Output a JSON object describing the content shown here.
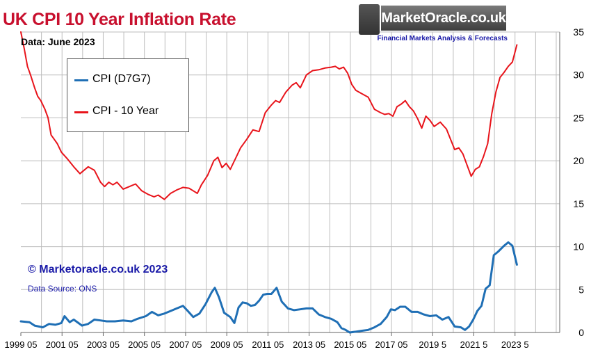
{
  "branding": {
    "site_name": "MarketOracle.co.uk",
    "tagline": "Financial Markets Analysis & Forecasts"
  },
  "footer": {
    "copyright": "© Marketoracle.co.uk 2023",
    "source": "Data Source: ONS"
  },
  "colors": {
    "cpi": "#1f6fb5",
    "cpi10": "#e8141b",
    "title": "#c8102e",
    "text_blue": "#1a1aa8",
    "grid": "#bdbdbd"
  },
  "chart_data": {
    "type": "line",
    "title": "UK CPI 10 Year Inflation Rate",
    "subtitle": "Data:  June 2023",
    "xlabel": "",
    "ylabel": "",
    "x_ticks": [
      "1999 05",
      "2001 05",
      "2003 05",
      "2005 05",
      "2007 05",
      "2009 05",
      "2011 05",
      "2013 05",
      "2015 05",
      "2017 05",
      "2019 5",
      "2021 5",
      "2023 5"
    ],
    "x_range": [
      1999.33,
      2025.5
    ],
    "ylim": [
      0,
      35
    ],
    "y_ticks": [
      0,
      5,
      10,
      15,
      20,
      25,
      30,
      35
    ],
    "y_axis_side": "right",
    "grid": true,
    "legend_position": "top-left",
    "series": [
      {
        "name": "CPI (D7G7)",
        "color": "#1f6fb5",
        "x": [
          1999.33,
          1999.75,
          2000.0,
          2000.4,
          2000.7,
          2001.0,
          2001.3,
          2001.45,
          2001.7,
          2001.9,
          2002.3,
          2002.6,
          2002.9,
          2003.2,
          2003.5,
          2003.9,
          2004.3,
          2004.7,
          2005.0,
          2005.4,
          2005.7,
          2006.0,
          2006.3,
          2006.6,
          2006.9,
          2007.2,
          2007.4,
          2007.7,
          2008.0,
          2008.3,
          2008.6,
          2008.75,
          2008.95,
          2009.2,
          2009.5,
          2009.7,
          2009.9,
          2010.1,
          2010.3,
          2010.5,
          2010.7,
          2010.9,
          2011.1,
          2011.3,
          2011.5,
          2011.75,
          2012.0,
          2012.3,
          2012.6,
          2012.9,
          2013.2,
          2013.5,
          2013.8,
          2014.1,
          2014.4,
          2014.7,
          2014.9,
          2015.1,
          2015.3,
          2015.6,
          2015.9,
          2016.2,
          2016.5,
          2016.8,
          2017.1,
          2017.3,
          2017.5,
          2017.75,
          2018.0,
          2018.3,
          2018.6,
          2018.9,
          2019.2,
          2019.5,
          2019.8,
          2020.1,
          2020.4,
          2020.7,
          2020.9,
          2021.1,
          2021.3,
          2021.5,
          2021.7,
          2021.9,
          2022.1,
          2022.3,
          2022.5,
          2022.8,
          2023.0,
          2023.2,
          2023.42
        ],
        "values": [
          1.3,
          1.2,
          0.8,
          0.6,
          1.0,
          0.9,
          1.1,
          1.9,
          1.2,
          1.5,
          0.8,
          1.0,
          1.5,
          1.4,
          1.3,
          1.3,
          1.4,
          1.3,
          1.6,
          1.9,
          2.4,
          2.0,
          2.2,
          2.5,
          2.8,
          3.1,
          2.6,
          1.8,
          2.2,
          3.3,
          4.7,
          5.2,
          4.1,
          2.3,
          1.8,
          1.1,
          2.9,
          3.5,
          3.4,
          3.1,
          3.2,
          3.7,
          4.4,
          4.5,
          4.5,
          5.2,
          3.6,
          2.8,
          2.6,
          2.7,
          2.8,
          2.8,
          2.1,
          1.8,
          1.6,
          1.2,
          0.5,
          0.3,
          0.0,
          0.1,
          0.2,
          0.3,
          0.6,
          1.0,
          1.8,
          2.7,
          2.6,
          3.0,
          3.0,
          2.4,
          2.4,
          2.1,
          1.9,
          2.0,
          1.5,
          1.8,
          0.7,
          0.6,
          0.3,
          0.7,
          1.5,
          2.5,
          3.1,
          5.1,
          5.5,
          9.0,
          9.4,
          10.1,
          10.5,
          10.1,
          7.9
        ]
      },
      {
        "name": "CPI - 10 Year",
        "color": "#e8141b",
        "x": [
          1999.33,
          1999.5,
          1999.65,
          1999.8,
          2000.0,
          2000.15,
          2000.3,
          2000.5,
          2000.65,
          2000.8,
          2000.95,
          2001.1,
          2001.3,
          2001.6,
          2001.9,
          2002.2,
          2002.6,
          2002.9,
          2003.2,
          2003.4,
          2003.6,
          2003.8,
          2004.0,
          2004.3,
          2004.6,
          2004.9,
          2005.2,
          2005.5,
          2005.8,
          2006.0,
          2006.3,
          2006.6,
          2006.9,
          2007.2,
          2007.5,
          2007.7,
          2007.9,
          2008.1,
          2008.4,
          2008.7,
          2008.9,
          2009.1,
          2009.3,
          2009.5,
          2009.8,
          2010.0,
          2010.3,
          2010.6,
          2010.9,
          2011.2,
          2011.5,
          2011.7,
          2011.9,
          2012.2,
          2012.5,
          2012.7,
          2012.9,
          2013.2,
          2013.5,
          2013.8,
          2014.1,
          2014.4,
          2014.6,
          2014.8,
          2015.0,
          2015.2,
          2015.4,
          2015.6,
          2015.9,
          2016.2,
          2016.5,
          2016.8,
          2017.0,
          2017.2,
          2017.4,
          2017.6,
          2017.8,
          2018.0,
          2018.2,
          2018.4,
          2018.6,
          2018.8,
          2019.0,
          2019.2,
          2019.4,
          2019.7,
          2020.0,
          2020.2,
          2020.4,
          2020.6,
          2020.8,
          2021.0,
          2021.2,
          2021.4,
          2021.6,
          2021.8,
          2022.0,
          2022.2,
          2022.4,
          2022.6,
          2022.8,
          2023.0,
          2023.2,
          2023.42
        ],
        "values": [
          35.0,
          33.0,
          31.0,
          30.0,
          28.5,
          27.5,
          27.0,
          26.0,
          25.0,
          23.0,
          22.5,
          22.0,
          21.0,
          20.2,
          19.3,
          18.5,
          19.3,
          18.9,
          17.5,
          17.0,
          17.5,
          17.2,
          17.5,
          16.7,
          17.0,
          17.3,
          16.5,
          16.1,
          15.8,
          16.0,
          15.5,
          16.2,
          16.6,
          16.9,
          16.8,
          16.5,
          16.2,
          17.2,
          18.3,
          20.0,
          20.4,
          19.2,
          19.7,
          19.0,
          20.5,
          21.5,
          22.5,
          23.6,
          23.4,
          25.6,
          26.5,
          27.0,
          26.8,
          28.0,
          28.8,
          29.1,
          28.5,
          30.0,
          30.5,
          30.6,
          30.8,
          30.9,
          31.0,
          30.7,
          30.9,
          30.2,
          28.9,
          28.2,
          27.8,
          27.4,
          26.0,
          25.6,
          25.4,
          25.5,
          25.2,
          26.3,
          26.6,
          27.0,
          26.3,
          25.8,
          24.9,
          23.8,
          25.2,
          24.7,
          24.0,
          24.5,
          23.7,
          22.5,
          21.3,
          21.5,
          20.8,
          19.5,
          18.2,
          19.0,
          19.3,
          20.5,
          22.0,
          25.5,
          28.0,
          29.7,
          30.3,
          31.0,
          31.5,
          33.5
        ]
      }
    ]
  }
}
